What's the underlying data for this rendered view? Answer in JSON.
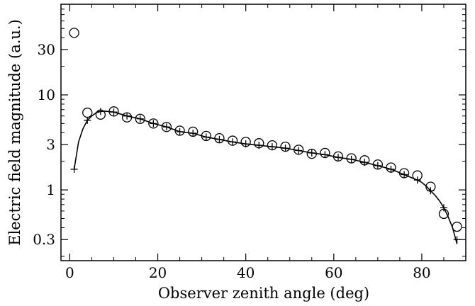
{
  "chart_data": {
    "type": "scatter",
    "title": "",
    "xlabel": "Observer zenith angle (deg)",
    "ylabel": "Electric field magnitude (a.u.)",
    "x_scale": "linear",
    "y_scale": "log",
    "xlim": [
      -2,
      90
    ],
    "ylim": [
      0.18,
      90
    ],
    "x_ticks": [
      0,
      20,
      40,
      60,
      80
    ],
    "x_tick_labels": [
      "0",
      "20",
      "40",
      "60",
      "80"
    ],
    "y_ticks": [
      0.3,
      1,
      3,
      10,
      30
    ],
    "y_tick_labels": [
      "0.3",
      "1",
      "3",
      "10",
      "30"
    ],
    "grid": false,
    "legend": "none",
    "series": [
      {
        "marker": "circle",
        "x": [
          1,
          4,
          7,
          10,
          13,
          16,
          19,
          22,
          25,
          28,
          31,
          34,
          37,
          40,
          43,
          46,
          49,
          52,
          55,
          58,
          61,
          64,
          67,
          70,
          73,
          76,
          79,
          82,
          85,
          88
        ],
        "y": [
          45,
          6.5,
          6.2,
          6.7,
          5.8,
          5.6,
          5.0,
          4.6,
          4.2,
          4.1,
          3.7,
          3.5,
          3.3,
          3.2,
          3.1,
          2.95,
          2.85,
          2.65,
          2.4,
          2.45,
          2.25,
          2.15,
          2.05,
          1.85,
          1.72,
          1.5,
          1.42,
          1.08,
          0.56,
          0.41
        ]
      },
      {
        "marker": "plus",
        "x": [
          1,
          4,
          7,
          10,
          13,
          16,
          19,
          22,
          25,
          28,
          31,
          34,
          37,
          40,
          43,
          46,
          49,
          52,
          55,
          58,
          61,
          64,
          67,
          70,
          73,
          76,
          79,
          82,
          85,
          88
        ],
        "y": [
          1.65,
          5.4,
          6.7,
          6.6,
          6.0,
          5.6,
          5.0,
          4.6,
          4.1,
          3.95,
          3.6,
          3.4,
          3.2,
          3.05,
          2.95,
          2.85,
          2.75,
          2.6,
          2.45,
          2.35,
          2.2,
          2.1,
          1.95,
          1.8,
          1.65,
          1.45,
          1.27,
          0.98,
          0.65,
          0.3
        ]
      },
      {
        "marker": "line",
        "x": [
          1,
          2,
          3,
          4,
          5,
          6,
          7,
          8,
          10,
          13,
          16,
          19,
          22,
          25,
          28,
          31,
          34,
          37,
          40,
          43,
          46,
          49,
          52,
          55,
          58,
          61,
          64,
          67,
          70,
          73,
          76,
          79,
          80,
          81,
          82,
          83,
          84,
          85,
          86,
          87,
          88
        ],
        "y": [
          1.65,
          3.2,
          4.4,
          5.4,
          6.0,
          6.5,
          6.7,
          6.75,
          6.6,
          6.0,
          5.6,
          5.0,
          4.6,
          4.1,
          3.95,
          3.6,
          3.4,
          3.2,
          3.05,
          2.95,
          2.85,
          2.75,
          2.6,
          2.45,
          2.35,
          2.2,
          2.1,
          1.95,
          1.8,
          1.65,
          1.45,
          1.27,
          1.2,
          1.1,
          0.98,
          0.88,
          0.77,
          0.65,
          0.52,
          0.4,
          0.27
        ]
      }
    ]
  }
}
